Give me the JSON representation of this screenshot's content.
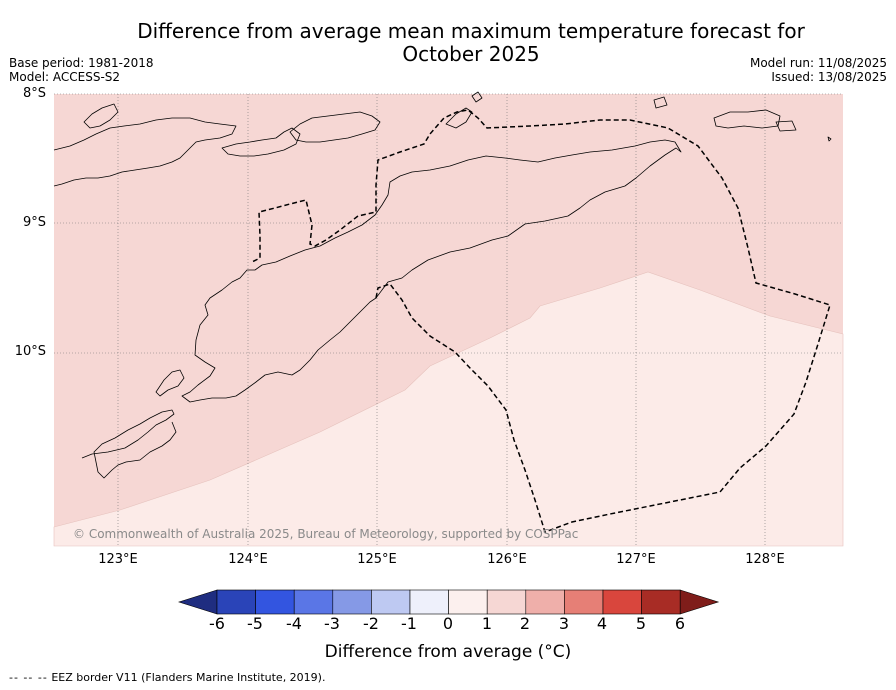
{
  "title": "Difference from average mean maximum temperature forecast for October 2025",
  "title_line1": "Difference from average mean maximum temperature forecast for",
  "title_line2": "October 2025",
  "meta_left": [
    "Base period: 1981-2018",
    "Model: ACCESS-S2"
  ],
  "meta_right": [
    "Model run: 11/08/2025",
    "Issued: 13/08/2025"
  ],
  "lat_labels": [
    "8°S",
    "9°S",
    "10°S"
  ],
  "lon_labels": [
    "123°E",
    "124°E",
    "125°E",
    "126°E",
    "127°E",
    "128°E"
  ],
  "copyright": "© Commonwealth of Australia 2025, Bureau of Meteorology, supported by COSPPac",
  "colorbar": {
    "ticks": [
      "-6",
      "-5",
      "-4",
      "-3",
      "-2",
      "-1",
      "0",
      "1",
      "2",
      "3",
      "4",
      "5",
      "6"
    ],
    "colors": [
      "#1f2d80",
      "#2a44b8",
      "#3355e0",
      "#5a76e6",
      "#8599e6",
      "#bec9f2",
      "#eef0fb",
      "#fcf0ee",
      "#f6d7d4",
      "#efafaa",
      "#e67f76",
      "#d9463d",
      "#a82c25",
      "#7f1d1a"
    ],
    "label": "Difference from average (°C)"
  },
  "map_fill": {
    "category_1_to_2": "#f6d7d4",
    "category_0_to_1": "#fcebe8"
  },
  "legend": {
    "symbol": "-- -- --",
    "text": "EEZ border V11 (Flanders Marine Institute, 2019)."
  }
}
